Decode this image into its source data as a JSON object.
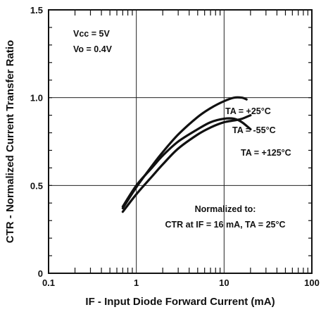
{
  "chart_data": {
    "type": "line",
    "xlabel": "IF - Input Diode Forward Current (mA)",
    "ylabel": "CTR - Normalized Current Transfer Ratio",
    "x_scale": "log",
    "xlim": [
      0.1,
      100
    ],
    "ylim": [
      0,
      1.5
    ],
    "x_ticks": [
      0.1,
      1,
      10,
      100
    ],
    "x_tick_labels": [
      "0.1",
      "1",
      "10",
      "100"
    ],
    "y_ticks": [
      0,
      0.5,
      1.0,
      1.5
    ],
    "y_tick_labels": [
      "0",
      "0.5",
      "1.0",
      "1.5"
    ],
    "grid": true,
    "conditions": [
      "Vcc = 5V",
      "Vo = 0.4V"
    ],
    "note": [
      "Normalized to:",
      "CTR at IF = 16 mA, TA = 25°C"
    ],
    "series": [
      {
        "name": "TA = +25°C",
        "x": [
          0.7,
          1.0,
          1.5,
          2.0,
          3.0,
          5.0,
          7.0,
          10.0,
          13.0,
          16.0,
          18.0
        ],
        "y": [
          0.37,
          0.49,
          0.61,
          0.69,
          0.79,
          0.89,
          0.94,
          0.98,
          1.0,
          1.0,
          0.99
        ]
      },
      {
        "name": "TA = -55°C",
        "x": [
          0.7,
          1.0,
          1.5,
          2.0,
          3.0,
          5.0,
          7.0,
          10.0,
          13.0,
          16.0,
          20.0
        ],
        "y": [
          0.35,
          0.45,
          0.55,
          0.62,
          0.71,
          0.79,
          0.83,
          0.86,
          0.87,
          0.88,
          0.9
        ]
      },
      {
        "name": "TA = +125°C",
        "x": [
          0.7,
          1.0,
          1.5,
          2.0,
          3.0,
          5.0,
          7.0,
          10.0,
          13.0,
          16.0,
          20.0
        ],
        "y": [
          0.38,
          0.5,
          0.6,
          0.67,
          0.75,
          0.82,
          0.86,
          0.88,
          0.88,
          0.86,
          0.82
        ]
      }
    ]
  }
}
